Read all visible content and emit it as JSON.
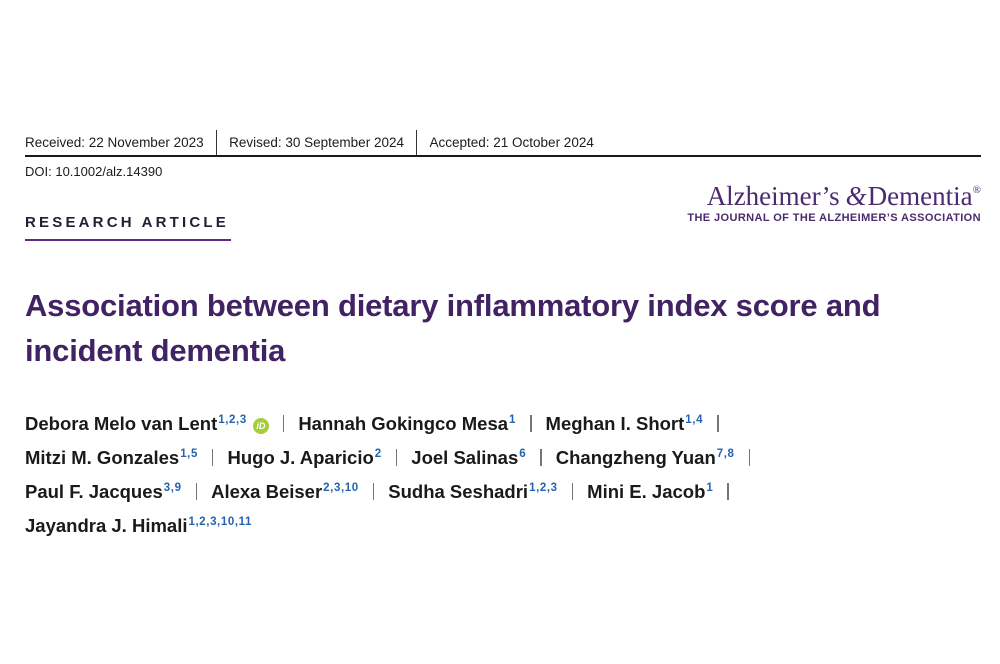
{
  "colors": {
    "title-purple": "#412364",
    "logo-purple": "#4b2a6f",
    "accent-purple": "#5c2d87",
    "sup-blue": "#2563ad",
    "orcid-green": "#a6ce39"
  },
  "history_bar": {
    "received": "Received: 22 November 2023",
    "revised": "Revised: 30 September 2024",
    "accepted": "Accepted: 21 October 2024"
  },
  "doi_line": "DOI: 10.1002/alz.14390",
  "journal_logo": {
    "name_prefix": "Alzheimer’s",
    "ampersand": "&",
    "name_suffix": "Dementia",
    "registered_mark": "®",
    "subtitle": "THE JOURNAL OF THE ALZHEIMER’S ASSOCIATION"
  },
  "section_label": "RESEARCH ARTICLE",
  "article_title": {
    "line1": "Association between dietary inflammatory index score and",
    "line2": "incident dementia"
  },
  "orcid_icon_text": "iD",
  "author_lines": [
    [
      {
        "name": "Debora Melo van Lent",
        "affiliations": "1,2,3",
        "has_orcid": true
      },
      {
        "name": "Hannah Gokingco Mesa",
        "affiliations": "1"
      },
      {
        "name": "Meghan I. Short",
        "affiliations": "1,4"
      }
    ],
    [
      {
        "name": "Mitzi M. Gonzales",
        "affiliations": "1,5"
      },
      {
        "name": "Hugo J. Aparicio",
        "affiliations": "2"
      },
      {
        "name": "Joel Salinas",
        "affiliations": "6"
      },
      {
        "name": "Changzheng Yuan",
        "affiliations": "7,8"
      }
    ],
    [
      {
        "name": "Paul F. Jacques",
        "affiliations": "3,9"
      },
      {
        "name": "Alexa Beiser",
        "affiliations": "2,3,10"
      },
      {
        "name": "Sudha Seshadri",
        "affiliations": "1,2,3"
      },
      {
        "name": "Mini E. Jacob",
        "affiliations": "1"
      }
    ],
    [
      {
        "name": "Jayandra J. Himali",
        "affiliations": "1,2,3,10,11"
      }
    ]
  ]
}
